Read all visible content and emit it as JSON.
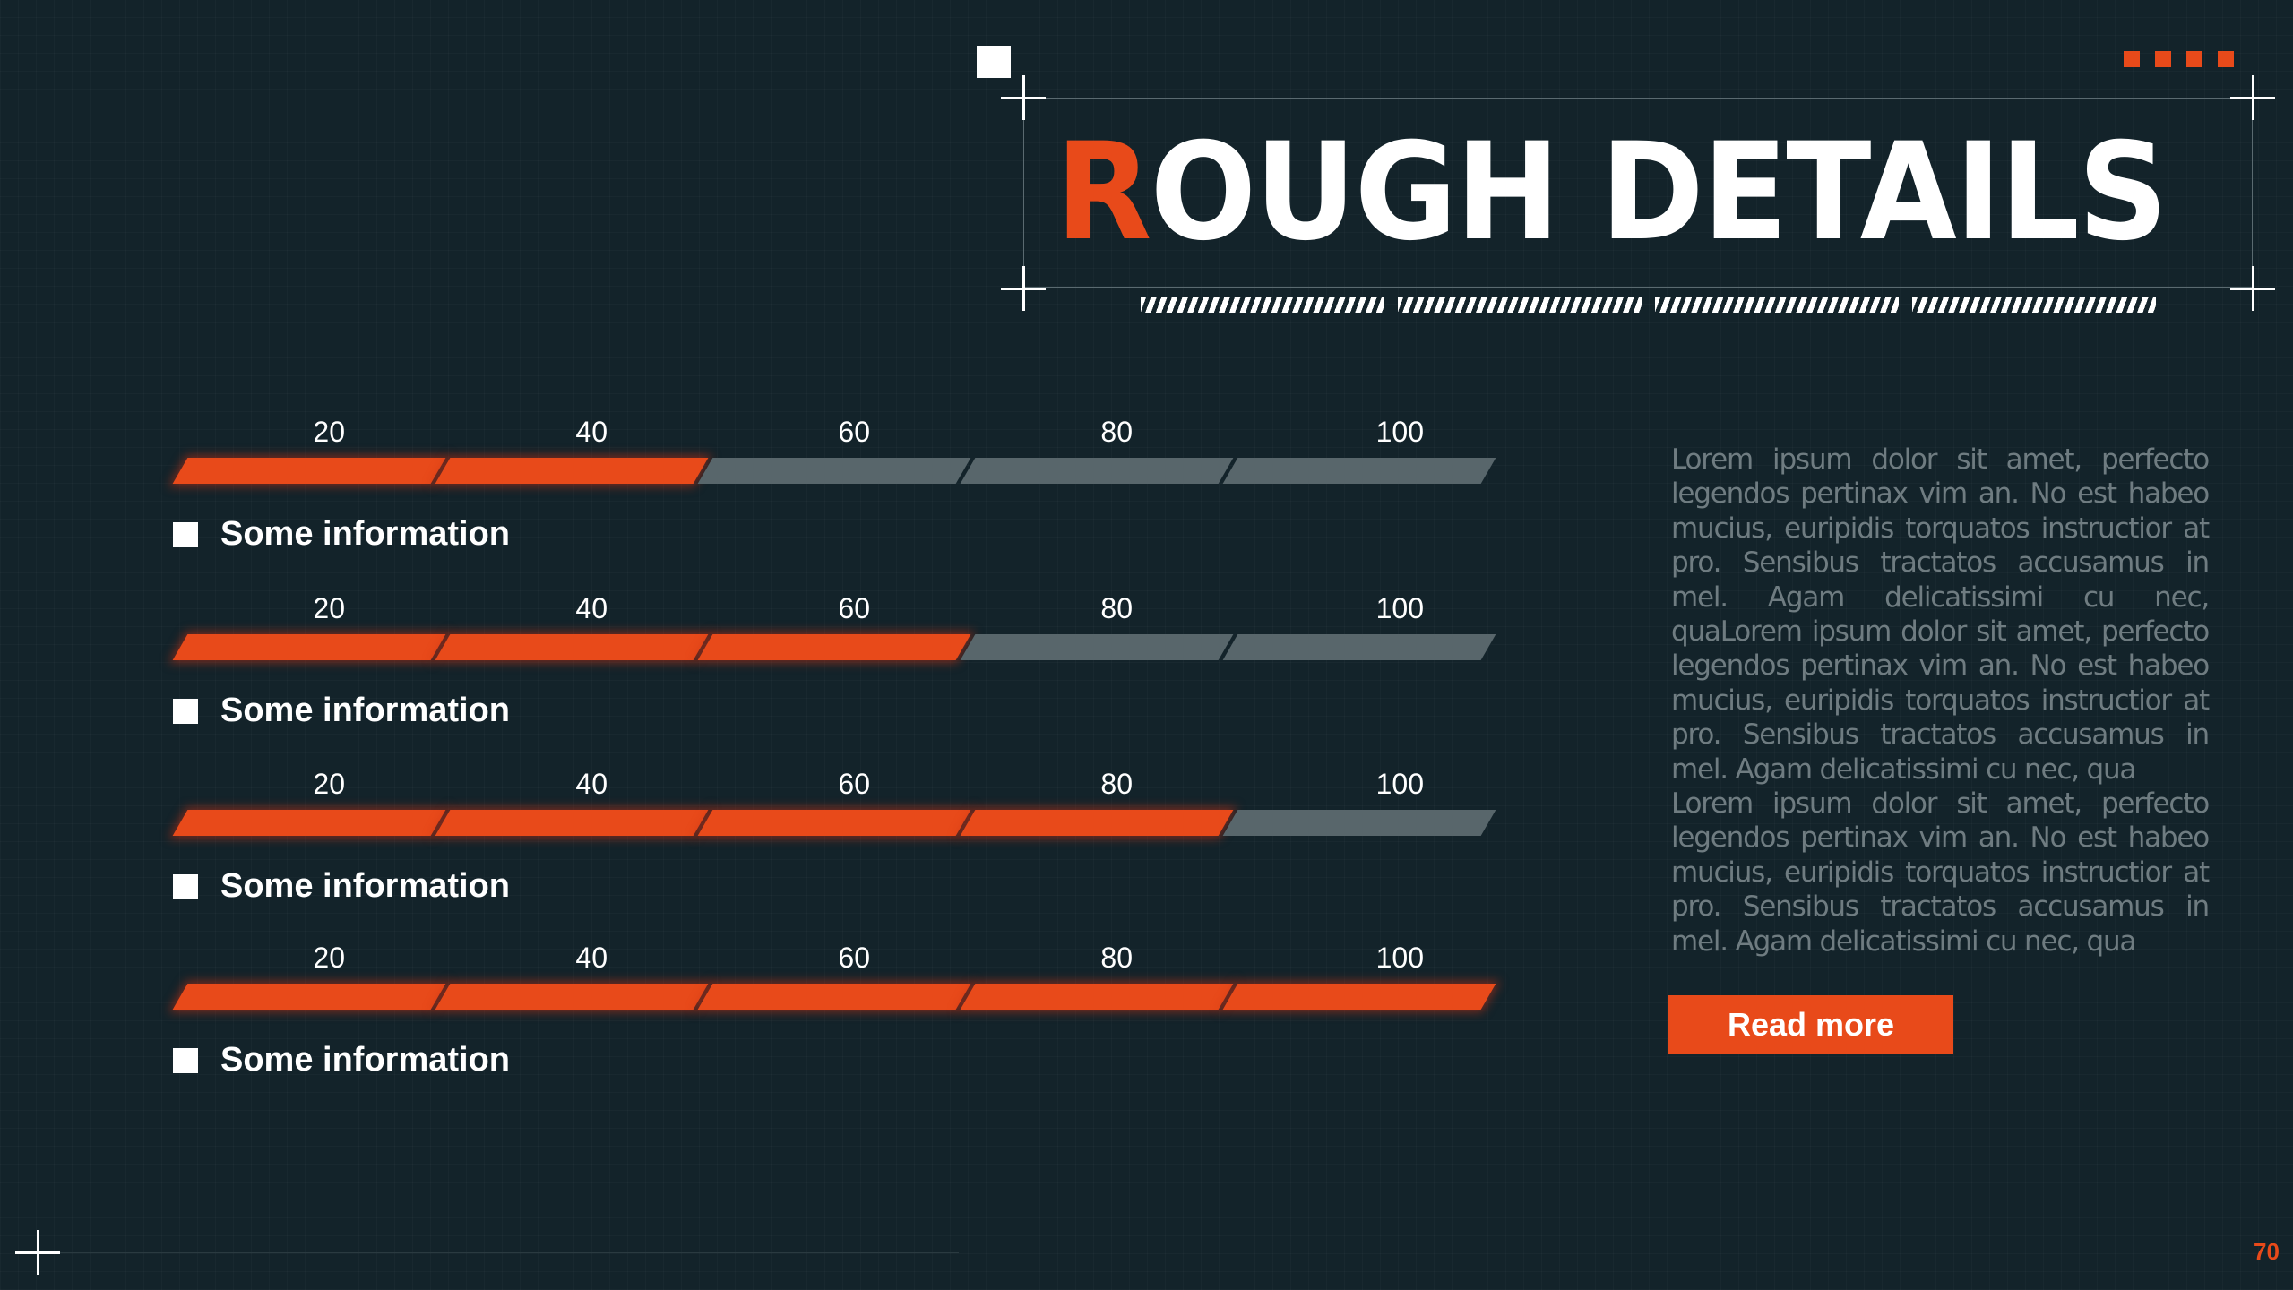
{
  "title": {
    "first_letter": "R",
    "rest": "OUGH DETAILS"
  },
  "accent_color": "#e84a1a",
  "progress_bars": [
    {
      "label": "Some information",
      "value": 40,
      "ticks": [
        "20",
        "40",
        "60",
        "80",
        "100"
      ]
    },
    {
      "label": "Some information",
      "value": 60,
      "ticks": [
        "20",
        "40",
        "60",
        "80",
        "100"
      ]
    },
    {
      "label": "Some information",
      "value": 80,
      "ticks": [
        "20",
        "40",
        "60",
        "80",
        "100"
      ]
    },
    {
      "label": "Some information",
      "value": 100,
      "ticks": [
        "20",
        "40",
        "60",
        "80",
        "100"
      ]
    }
  ],
  "paragraphs": [
    "Lorem ipsum dolor sit amet, perfecto legendos pertinax vim an. No est habeo mucius, euripidis torquatos instructior at pro. Sensibus tractatos accusamus in mel. Agam delicatissimi cu nec, quaLorem ipsum dolor sit amet, perfecto legendos pertinax vim an. No est habeo mucius, euripidis torquatos instructior at pro. Sensibus tractatos accusamus in mel. Agam delicatissimi cu nec, qua",
    "Lorem ipsum dolor sit amet, perfecto legendos pertinax vim an. No est habeo mucius, euripidis torquatos instructior at pro. Sensibus tractatos accusamus in mel. Agam delicatissimi cu nec, qua"
  ],
  "read_more_label": "Read more",
  "page_number": "70"
}
